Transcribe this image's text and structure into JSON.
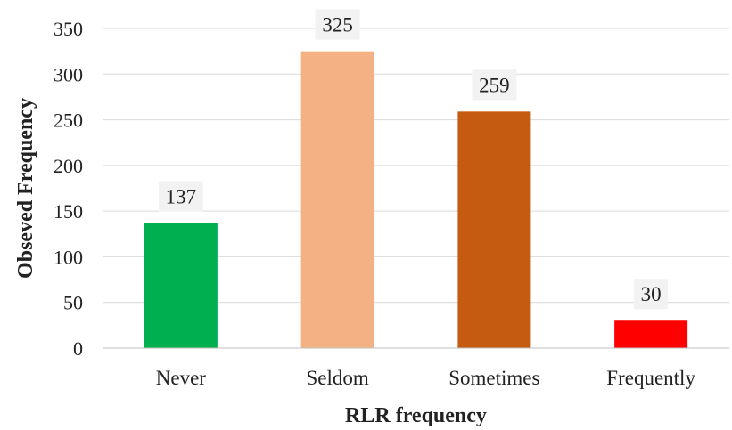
{
  "chart_data": {
    "type": "bar",
    "title": "",
    "xlabel": "RLR frequency",
    "ylabel": "Obseved Frequency",
    "categories": [
      "Never",
      "Seldom",
      "Sometimes",
      "Frequently"
    ],
    "values": [
      137,
      325,
      259,
      30
    ],
    "data_labels": [
      "137",
      "325",
      "259",
      "30"
    ],
    "ylim": [
      0,
      350
    ],
    "yticks": [
      0,
      50,
      100,
      150,
      200,
      250,
      300,
      350
    ],
    "ytick_labels": [
      "0",
      "50",
      "100",
      "150",
      "200",
      "250",
      "300",
      "350"
    ],
    "colors": [
      "#00b050",
      "#f4b183",
      "#c55a11",
      "#ff0000"
    ],
    "data_label_background": "#f2f2f2",
    "grid": true,
    "legend": "none"
  }
}
